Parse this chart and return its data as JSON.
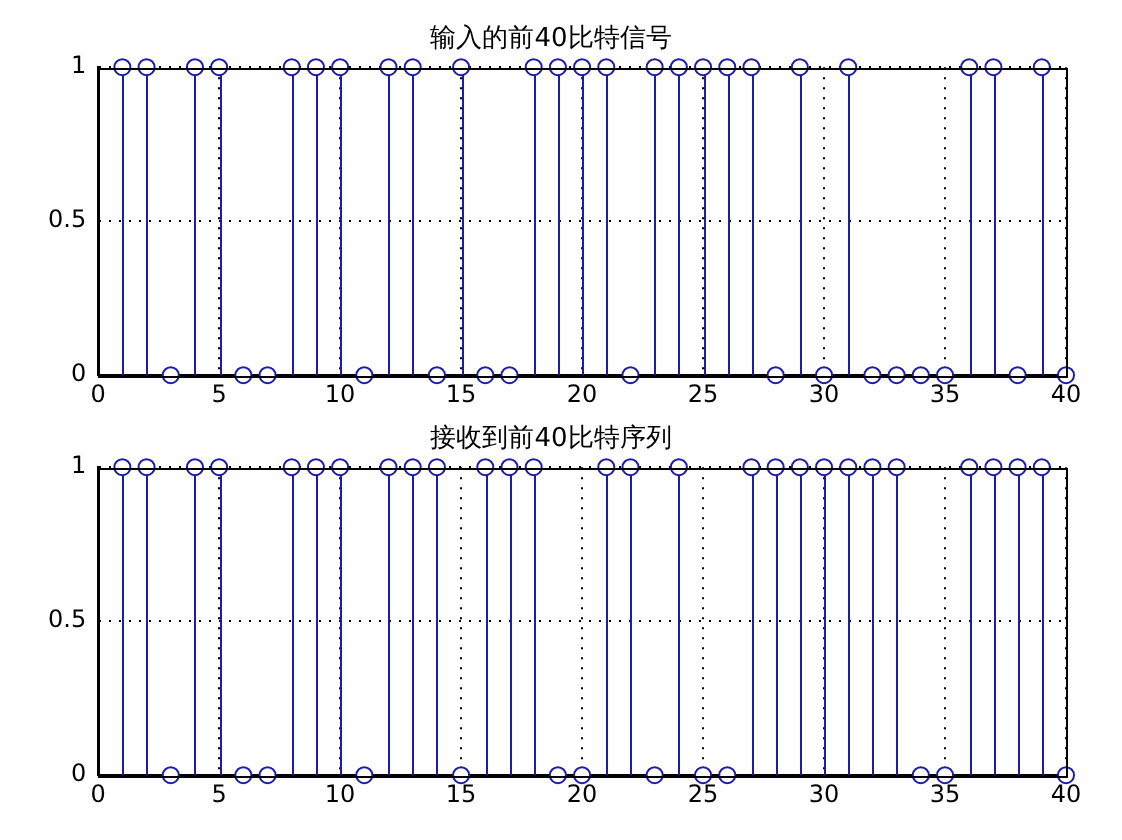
{
  "chart_data": [
    {
      "type": "lollipop",
      "title": "输入的前40比特信号",
      "x": [
        1,
        2,
        3,
        4,
        5,
        6,
        7,
        8,
        9,
        10,
        11,
        12,
        13,
        14,
        15,
        16,
        17,
        18,
        19,
        20,
        21,
        22,
        23,
        24,
        25,
        26,
        27,
        28,
        29,
        30,
        31,
        32,
        33,
        34,
        35,
        36,
        37,
        38,
        39,
        40
      ],
      "series": [
        {
          "color": "#1c1ca8",
          "values": [
            1,
            1,
            0,
            1,
            1,
            0,
            0,
            1,
            1,
            1,
            0,
            1,
            1,
            0,
            1,
            0,
            0,
            1,
            1,
            1,
            1,
            0,
            1,
            1,
            1,
            1,
            1,
            0,
            1,
            0,
            1,
            0,
            0,
            0,
            0,
            1,
            1,
            0,
            1,
            0
          ]
        }
      ],
      "xlim": [
        0,
        40
      ],
      "xticks": [
        0,
        5,
        10,
        15,
        20,
        25,
        30,
        35,
        40
      ],
      "ylim": [
        0,
        1
      ],
      "yticks": [
        0,
        0.5,
        1
      ],
      "grid": true,
      "marker": "circle"
    },
    {
      "type": "lollipop",
      "title": "接收到前40比特序列",
      "x": [
        1,
        2,
        3,
        4,
        5,
        6,
        7,
        8,
        9,
        10,
        11,
        12,
        13,
        14,
        15,
        16,
        17,
        18,
        19,
        20,
        21,
        22,
        23,
        24,
        25,
        26,
        27,
        28,
        29,
        30,
        31,
        32,
        33,
        34,
        35,
        36,
        37,
        38,
        39,
        40
      ],
      "series": [
        {
          "color": "#1c1ca8",
          "values": [
            1,
            1,
            0,
            1,
            1,
            0,
            0,
            1,
            1,
            1,
            0,
            1,
            1,
            1,
            0,
            1,
            1,
            1,
            0,
            0,
            1,
            1,
            0,
            1,
            0,
            0,
            1,
            1,
            1,
            1,
            1,
            1,
            1,
            0,
            0,
            1,
            1,
            1,
            1,
            0
          ]
        }
      ],
      "xlim": [
        0,
        40
      ],
      "xticks": [
        0,
        5,
        10,
        15,
        20,
        25,
        30,
        35,
        40
      ],
      "ylim": [
        0,
        1
      ],
      "yticks": [
        0,
        0.5,
        1
      ],
      "grid": true,
      "marker": "circle"
    }
  ]
}
